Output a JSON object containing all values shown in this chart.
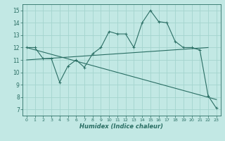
{
  "title": "",
  "xlabel": "Humidex (Indice chaleur)",
  "xlim": [
    -0.5,
    23.5
  ],
  "ylim": [
    6.5,
    15.5
  ],
  "xticks": [
    0,
    1,
    2,
    3,
    4,
    5,
    6,
    7,
    8,
    9,
    10,
    11,
    12,
    13,
    14,
    15,
    16,
    17,
    18,
    19,
    20,
    21,
    22,
    23
  ],
  "yticks": [
    7,
    8,
    9,
    10,
    11,
    12,
    13,
    14,
    15
  ],
  "bg_color": "#c2e8e4",
  "line_color": "#2a6e64",
  "grid_color": "#a4d4ce",
  "main_x": [
    0,
    1,
    2,
    3,
    4,
    5,
    6,
    7,
    8,
    9,
    10,
    11,
    12,
    13,
    14,
    15,
    16,
    17,
    18,
    19,
    20,
    21,
    22,
    23
  ],
  "main_y": [
    12.0,
    12.0,
    11.1,
    11.1,
    9.2,
    10.5,
    11.0,
    10.4,
    11.5,
    12.0,
    13.3,
    13.1,
    13.1,
    12.0,
    14.0,
    15.0,
    14.1,
    14.0,
    12.5,
    12.0,
    12.0,
    11.8,
    8.1,
    7.1
  ],
  "trend1_x": [
    0,
    23
  ],
  "trend1_y": [
    12.0,
    7.8
  ],
  "trend2_x": [
    0,
    22
  ],
  "trend2_y": [
    11.0,
    12.0
  ],
  "markers_x": [
    0,
    1,
    2,
    3,
    4,
    5,
    6,
    7,
    8,
    9,
    10,
    11,
    12,
    13,
    14,
    15,
    16,
    17,
    18,
    19,
    20,
    21,
    22,
    23
  ],
  "markers_y": [
    12.0,
    12.0,
    11.1,
    11.1,
    9.2,
    10.5,
    11.0,
    10.4,
    11.5,
    12.0,
    13.3,
    13.1,
    13.1,
    12.0,
    14.0,
    15.0,
    14.1,
    14.0,
    12.5,
    12.0,
    12.0,
    11.8,
    8.1,
    7.1
  ]
}
